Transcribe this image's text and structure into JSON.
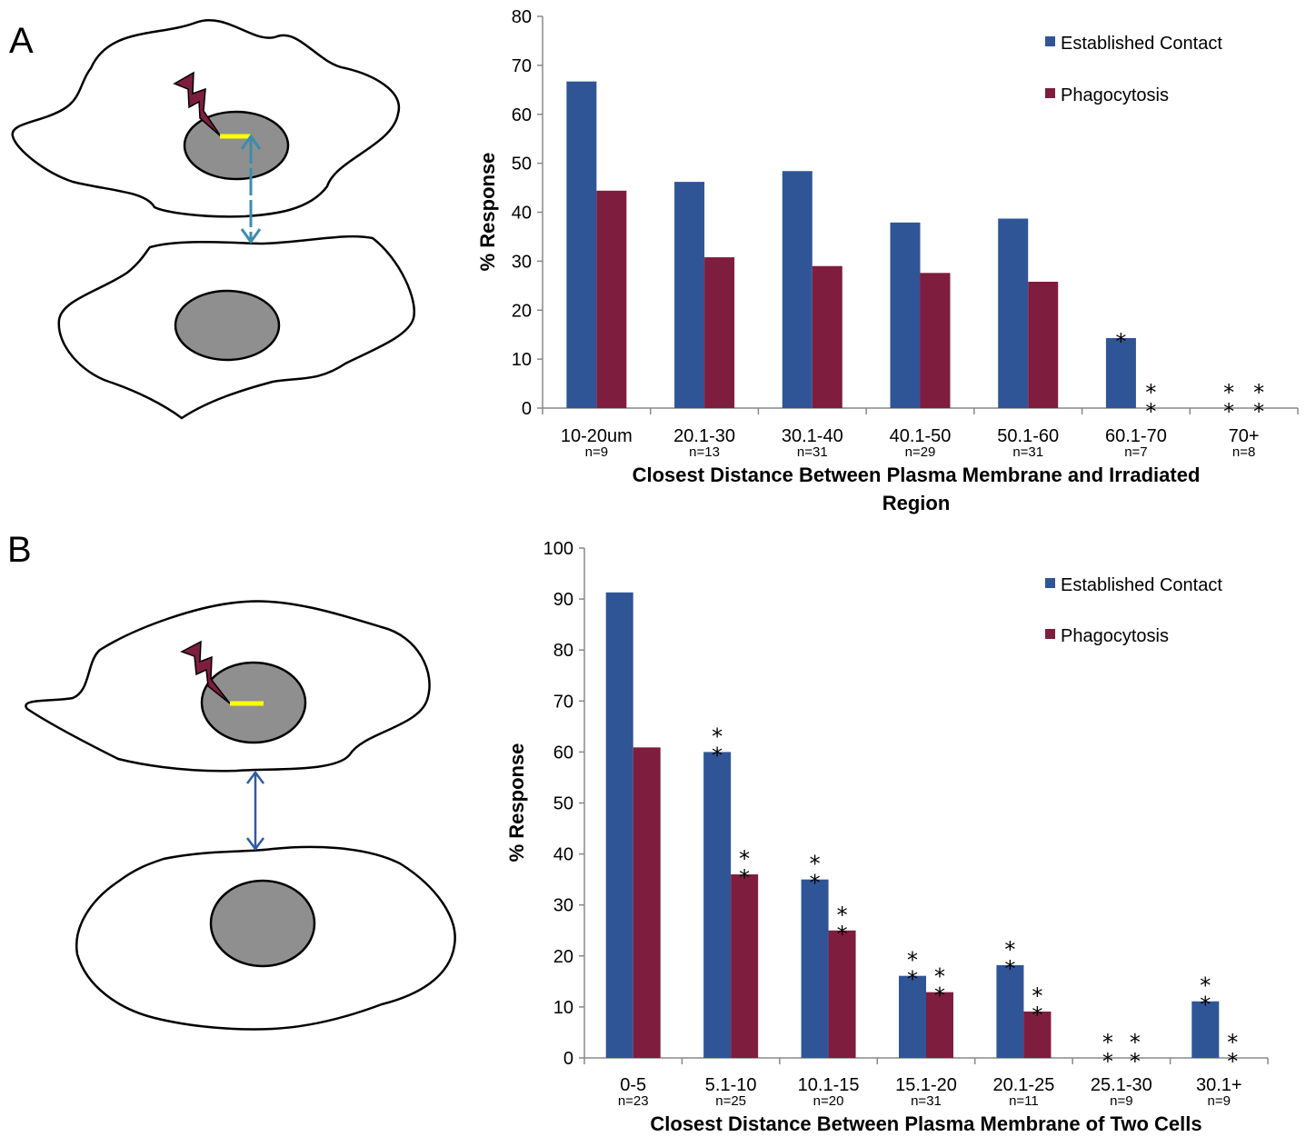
{
  "panels": {
    "a": {
      "letter": "A"
    },
    "b": {
      "letter": "B"
    }
  },
  "colors": {
    "established": "#2f5597",
    "phagocytosis": "#7f1d3f",
    "nucleus": "#8f8f8f",
    "laser_line": "#ffff00",
    "bolt": "#7f1d3f",
    "arrow_a": "#3c8cad",
    "arrow_b": "#2e5aa8"
  },
  "icons": {
    "a": [
      "cell-outline-icon",
      "nucleus-icon",
      "lightning-bolt-icon",
      "double-arrow-icon"
    ],
    "b": [
      "cell-outline-icon",
      "nucleus-icon",
      "lightning-bolt-icon",
      "double-arrow-icon"
    ]
  },
  "chart_data": [
    {
      "type": "bar",
      "panel": "A",
      "categories": [
        "10-20um",
        "20.1-30",
        "30.1-40",
        "40.1-50",
        "50.1-60",
        "60.1-70",
        "70+"
      ],
      "n_labels": [
        "n=9",
        "n=13",
        "n=31",
        "n=29",
        "n=31",
        "n=7",
        "n=8"
      ],
      "series": [
        {
          "name": "Established Contact",
          "values": [
            66.7,
            46.2,
            48.4,
            37.9,
            38.7,
            14.3,
            0
          ]
        },
        {
          "name": "Phagocytosis",
          "values": [
            44.4,
            30.8,
            29.0,
            27.6,
            25.8,
            0,
            0
          ]
        }
      ],
      "significance": [
        {
          "category": 5,
          "series": 0,
          "marks": "*"
        },
        {
          "category": 5,
          "series": 1,
          "marks": "**"
        },
        {
          "category": 6,
          "series": 0,
          "marks": "**"
        },
        {
          "category": 6,
          "series": 1,
          "marks": "**"
        }
      ],
      "ylabel": "% Response",
      "xlabel": "Closest Distance Between Plasma Membrane and Irradiated Region",
      "xlabel_lines": [
        "Closest Distance Between Plasma Membrane and Irradiated",
        "Region"
      ],
      "ylim": [
        0,
        80
      ],
      "yticks": [
        0,
        10,
        20,
        30,
        40,
        50,
        60,
        70,
        80
      ],
      "grid": false,
      "legend": "top-right"
    },
    {
      "type": "bar",
      "panel": "B",
      "categories": [
        "0-5",
        "5.1-10",
        "10.1-15",
        "15.1-20",
        "20.1-25",
        "25.1-30",
        "30.1+"
      ],
      "n_labels": [
        "n=23",
        "n=25",
        "n=20",
        "n=31",
        "n=11",
        "n=9",
        "n=9"
      ],
      "series": [
        {
          "name": "Established Contact",
          "values": [
            91.3,
            60.0,
            35.0,
            16.1,
            18.2,
            0,
            11.1
          ]
        },
        {
          "name": "Phagocytosis",
          "values": [
            60.9,
            36.0,
            25.0,
            12.9,
            9.1,
            0,
            0
          ]
        }
      ],
      "significance": [
        {
          "category": 1,
          "series": 0,
          "marks": "**"
        },
        {
          "category": 1,
          "series": 1,
          "marks": "**"
        },
        {
          "category": 2,
          "series": 0,
          "marks": "**"
        },
        {
          "category": 2,
          "series": 1,
          "marks": "**"
        },
        {
          "category": 3,
          "series": 0,
          "marks": "**"
        },
        {
          "category": 3,
          "series": 1,
          "marks": "**"
        },
        {
          "category": 4,
          "series": 0,
          "marks": "**"
        },
        {
          "category": 4,
          "series": 1,
          "marks": "**"
        },
        {
          "category": 5,
          "series": 0,
          "marks": "**"
        },
        {
          "category": 5,
          "series": 1,
          "marks": "**"
        },
        {
          "category": 6,
          "series": 0,
          "marks": "**"
        },
        {
          "category": 6,
          "series": 1,
          "marks": "**"
        }
      ],
      "ylabel": "% Response",
      "xlabel": "Closest Distance Between Plasma Membrane of Two Cells",
      "xlabel_lines": [
        "Closest Distance Between Plasma Membrane of Two Cells"
      ],
      "ylim": [
        0,
        100
      ],
      "yticks": [
        0,
        10,
        20,
        30,
        40,
        50,
        60,
        70,
        80,
        90,
        100
      ],
      "grid": false,
      "legend": "top-right"
    }
  ]
}
